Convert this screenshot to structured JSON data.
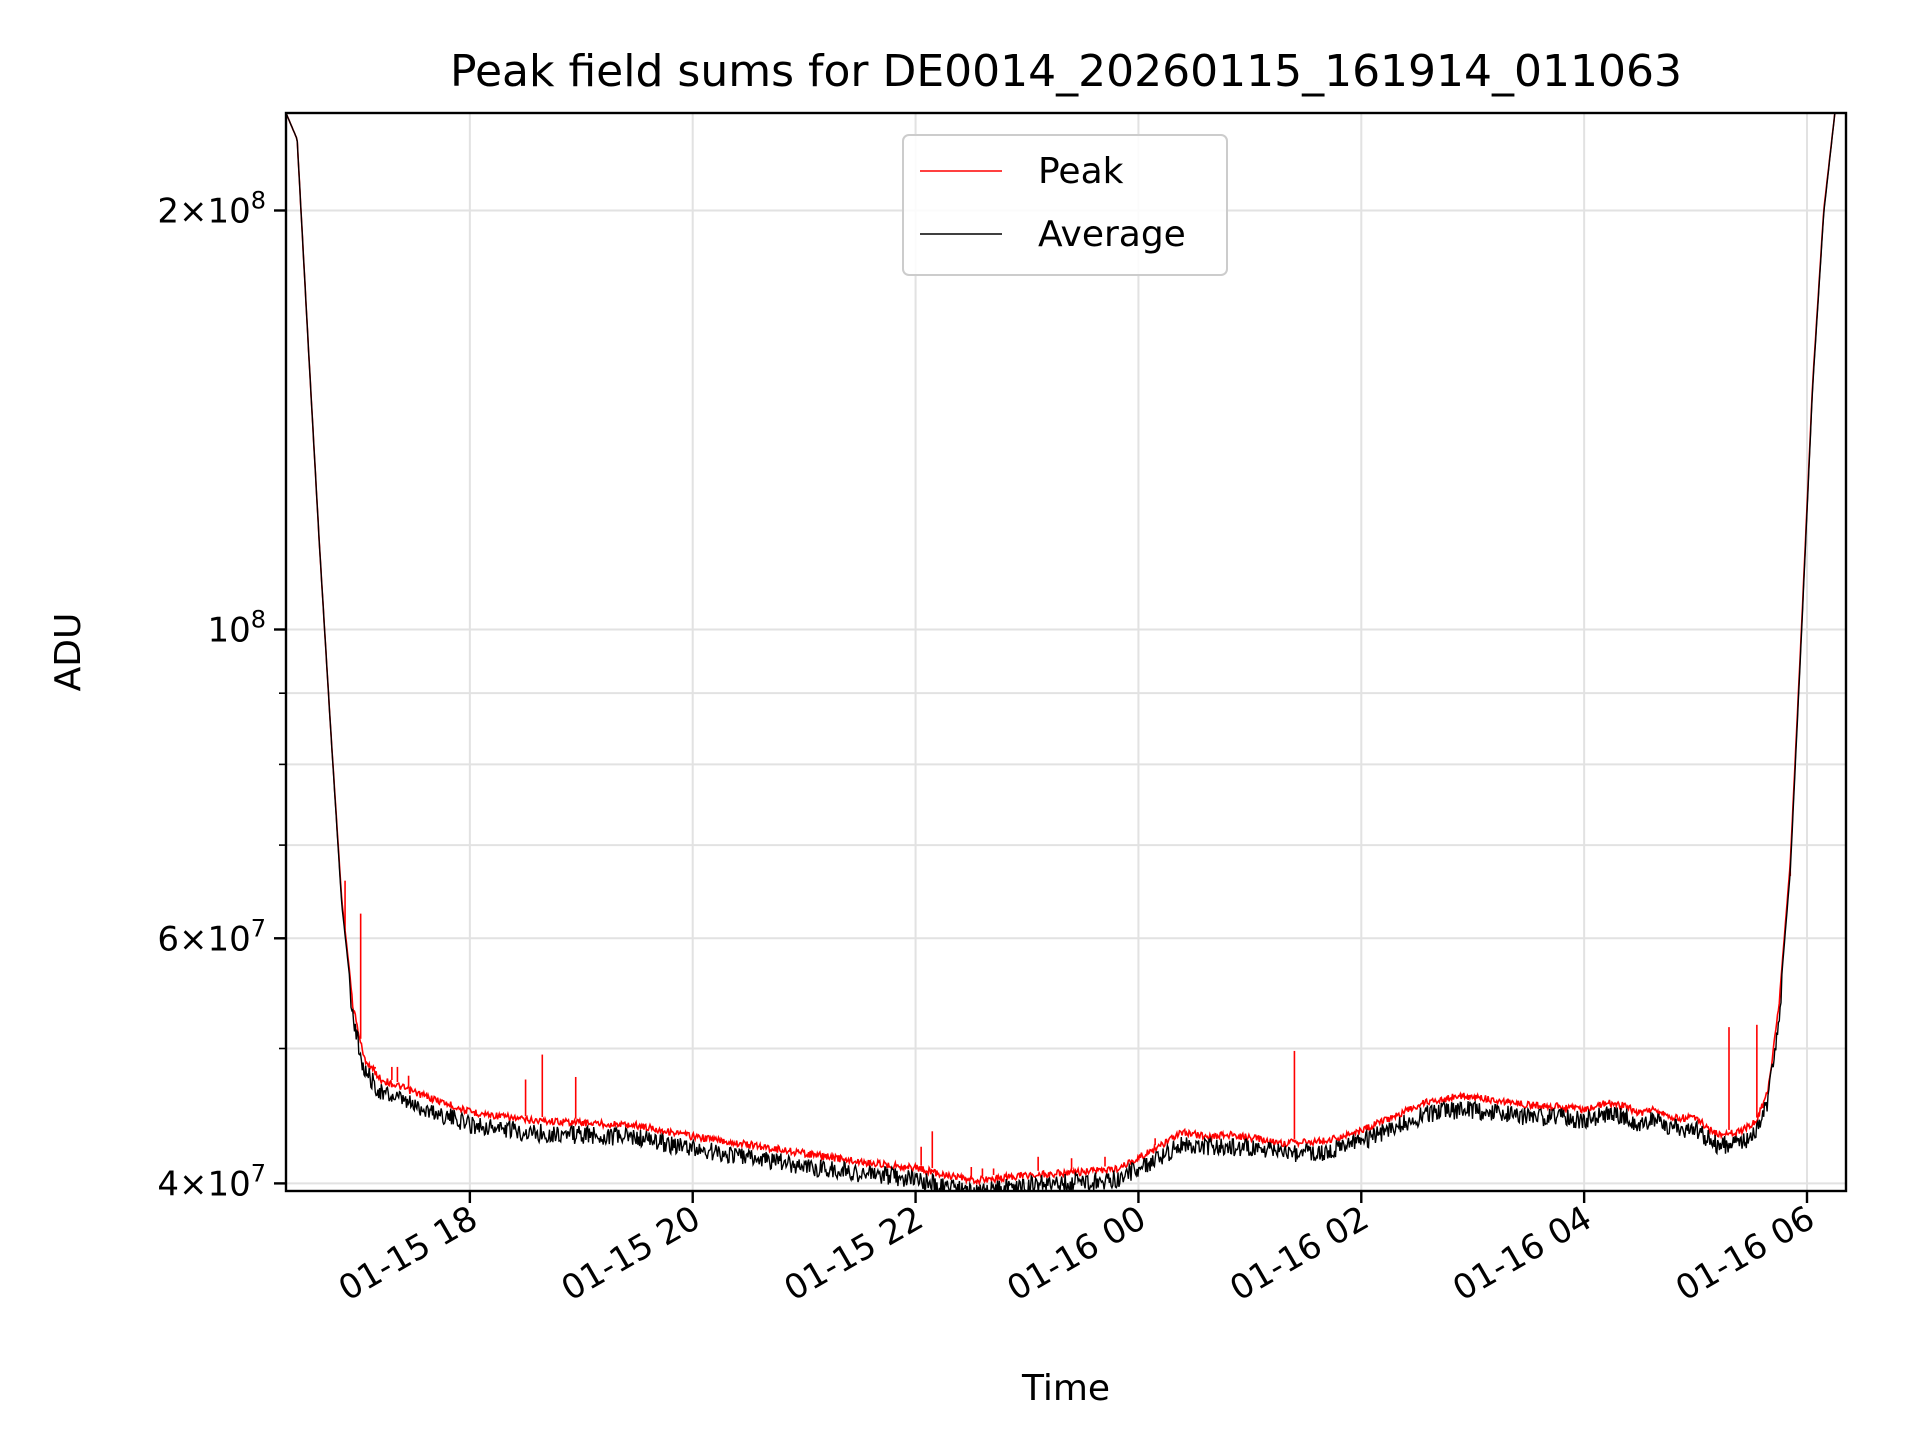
{
  "chart_data": {
    "type": "line",
    "title": "Peak field sums for DE0014_20260115_161914_011063",
    "xlabel": "Time",
    "ylabel": "ADU",
    "yscale": "log",
    "grid": true,
    "legend_position": "top-center",
    "xlim_hours": [
      16.35,
      30.35
    ],
    "ylim": [
      39500000,
      235000000
    ],
    "x_unit": "hours since 01-15 00:00",
    "x_ticks": [
      {
        "value": 18,
        "label": "01-15 18"
      },
      {
        "value": 20,
        "label": "01-15 20"
      },
      {
        "value": 22,
        "label": "01-15 22"
      },
      {
        "value": 24,
        "label": "01-16 00"
      },
      {
        "value": 26,
        "label": "01-16 02"
      },
      {
        "value": 28,
        "label": "01-16 04"
      },
      {
        "value": 30,
        "label": "01-16 06"
      }
    ],
    "y_major_ticks": [
      {
        "value": 40000000,
        "mantissa": "4",
        "exponent": "7"
      },
      {
        "value": 60000000,
        "mantissa": "6",
        "exponent": "7"
      },
      {
        "value": 100000000,
        "mantissa": "",
        "exponent": "8"
      },
      {
        "value": 200000000,
        "mantissa": "2",
        "exponent": "8"
      }
    ],
    "y_minor_ticks": [
      50000000,
      70000000,
      80000000,
      90000000
    ],
    "tick_times_sign": "×",
    "tick_base": "10",
    "series": [
      {
        "name": "Peak",
        "color": "#ff0000",
        "points": [
          [
            16.35,
            235000000
          ],
          [
            16.45,
            225000000
          ],
          [
            16.55,
            160000000
          ],
          [
            16.65,
            115000000
          ],
          [
            16.75,
            85000000
          ],
          [
            16.85,
            64000000
          ],
          [
            16.95,
            54000000
          ],
          [
            17.05,
            49500000
          ],
          [
            17.2,
            47800000
          ],
          [
            17.5,
            46800000
          ],
          [
            18.0,
            45300000
          ],
          [
            18.5,
            44700000
          ],
          [
            19.0,
            44500000
          ],
          [
            19.5,
            44300000
          ],
          [
            20.0,
            43500000
          ],
          [
            20.5,
            42900000
          ],
          [
            21.0,
            42300000
          ],
          [
            21.5,
            41700000
          ],
          [
            22.0,
            41300000
          ],
          [
            22.5,
            40400000
          ],
          [
            23.0,
            40800000
          ],
          [
            23.5,
            41000000
          ],
          [
            23.8,
            41200000
          ],
          [
            24.2,
            42800000
          ],
          [
            24.4,
            43800000
          ],
          [
            24.6,
            43500000
          ],
          [
            24.8,
            43600000
          ],
          [
            25.0,
            43400000
          ],
          [
            25.3,
            43000000
          ],
          [
            25.7,
            43200000
          ],
          [
            26.0,
            43900000
          ],
          [
            26.3,
            45000000
          ],
          [
            26.6,
            46100000
          ],
          [
            26.9,
            46500000
          ],
          [
            27.2,
            46200000
          ],
          [
            27.5,
            45800000
          ],
          [
            27.8,
            45700000
          ],
          [
            28.0,
            45500000
          ],
          [
            28.2,
            46000000
          ],
          [
            28.35,
            45800000
          ],
          [
            28.5,
            45200000
          ],
          [
            28.6,
            45500000
          ],
          [
            28.8,
            44900000
          ],
          [
            29.0,
            44800000
          ],
          [
            29.2,
            43600000
          ],
          [
            29.4,
            43800000
          ],
          [
            29.55,
            44600000
          ],
          [
            29.65,
            47000000
          ],
          [
            29.75,
            54000000
          ],
          [
            29.85,
            68000000
          ],
          [
            29.95,
            100000000
          ],
          [
            30.05,
            150000000
          ],
          [
            30.15,
            200000000
          ],
          [
            30.25,
            235000000
          ]
        ],
        "spikes": [
          [
            16.88,
            66000000
          ],
          [
            17.02,
            62500000
          ],
          [
            17.15,
            48500000
          ],
          [
            17.3,
            48500000
          ],
          [
            17.35,
            48500000
          ],
          [
            17.45,
            47800000
          ],
          [
            18.5,
            47500000
          ],
          [
            18.65,
            49500000
          ],
          [
            18.95,
            47700000
          ],
          [
            21.6,
            41600000
          ],
          [
            22.05,
            42500000
          ],
          [
            22.15,
            43600000
          ],
          [
            22.5,
            41100000
          ],
          [
            22.6,
            41000000
          ],
          [
            22.7,
            41000000
          ],
          [
            23.1,
            41800000
          ],
          [
            23.4,
            41700000
          ],
          [
            23.7,
            41800000
          ],
          [
            24.15,
            43100000
          ],
          [
            25.4,
            49800000
          ],
          [
            29.3,
            51800000
          ],
          [
            29.55,
            52000000
          ],
          [
            29.85,
            66500000
          ]
        ]
      },
      {
        "name": "Average",
        "color": "#000000",
        "points": [
          [
            16.35,
            235000000
          ],
          [
            16.45,
            225000000
          ],
          [
            16.55,
            160000000
          ],
          [
            16.65,
            115000000
          ],
          [
            16.75,
            85000000
          ],
          [
            16.85,
            63500000
          ],
          [
            16.95,
            53500000
          ],
          [
            17.05,
            49000000
          ],
          [
            17.2,
            47200000
          ],
          [
            17.5,
            46200000
          ],
          [
            18.0,
            44800000
          ],
          [
            18.5,
            44200000
          ],
          [
            19.0,
            44000000
          ],
          [
            19.5,
            43800000
          ],
          [
            20.0,
            43000000
          ],
          [
            20.5,
            42400000
          ],
          [
            21.0,
            41800000
          ],
          [
            21.5,
            41300000
          ],
          [
            22.0,
            40900000
          ],
          [
            22.5,
            40000000
          ],
          [
            23.0,
            40500000
          ],
          [
            23.5,
            40700000
          ],
          [
            23.8,
            40900000
          ],
          [
            24.2,
            42400000
          ],
          [
            24.4,
            43400000
          ],
          [
            24.6,
            43100000
          ],
          [
            24.8,
            43200000
          ],
          [
            25.0,
            43000000
          ],
          [
            25.3,
            42700000
          ],
          [
            25.7,
            42800000
          ],
          [
            26.0,
            43500000
          ],
          [
            26.3,
            44600000
          ],
          [
            26.6,
            45600000
          ],
          [
            26.9,
            45900000
          ],
          [
            27.2,
            45700000
          ],
          [
            27.5,
            45300000
          ],
          [
            27.8,
            45300000
          ],
          [
            28.0,
            45100000
          ],
          [
            28.2,
            45600000
          ],
          [
            28.35,
            45400000
          ],
          [
            28.5,
            44800000
          ],
          [
            28.6,
            45100000
          ],
          [
            28.8,
            44500000
          ],
          [
            29.0,
            44400000
          ],
          [
            29.2,
            43200000
          ],
          [
            29.4,
            43400000
          ],
          [
            29.55,
            44200000
          ],
          [
            29.65,
            46500000
          ],
          [
            29.75,
            53500000
          ],
          [
            29.85,
            67000000
          ],
          [
            29.95,
            99000000
          ],
          [
            30.05,
            149000000
          ],
          [
            30.15,
            199000000
          ],
          [
            30.25,
            235000000
          ]
        ]
      }
    ]
  }
}
